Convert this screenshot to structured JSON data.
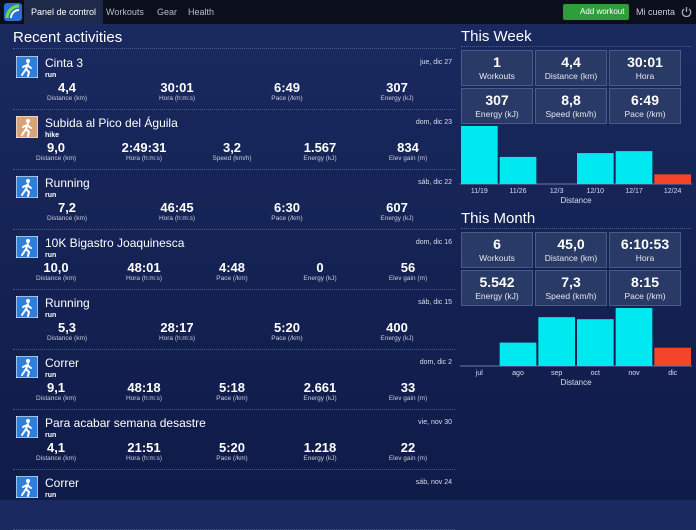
{
  "nav": {
    "tabs": [
      "Panel de control",
      "Workouts",
      "Gear",
      "Health"
    ],
    "add_button": "Add workout",
    "account": "Mi cuenta"
  },
  "recent": {
    "title": "Recent activities",
    "activities": [
      {
        "name": "Cinta 3",
        "type": "run",
        "date": "jue, dic 27",
        "stats": [
          {
            "value": "4,4",
            "label": "Distance (km)"
          },
          {
            "value": "30:01",
            "label": "Hora (h:m:s)"
          },
          {
            "value": "6:49",
            "label": "Pace (/km)"
          },
          {
            "value": "307",
            "label": "Energy (kJ)"
          }
        ]
      },
      {
        "name": "Subida al Pico del Águila",
        "type": "hike",
        "date": "dom, dic 23",
        "stats": [
          {
            "value": "9,0",
            "label": "Distance (km)"
          },
          {
            "value": "2:49:31",
            "label": "Hora (h:m:s)"
          },
          {
            "value": "3,2",
            "label": "Speed (km/h)"
          },
          {
            "value": "1.567",
            "label": "Energy (kJ)"
          },
          {
            "value": "834",
            "label": "Elev gain (m)"
          }
        ]
      },
      {
        "name": "Running",
        "type": "run",
        "date": "sáb, dic 22",
        "stats": [
          {
            "value": "7,2",
            "label": "Distance (km)"
          },
          {
            "value": "46:45",
            "label": "Hora (h:m:s)"
          },
          {
            "value": "6:30",
            "label": "Pace (/km)"
          },
          {
            "value": "607",
            "label": "Energy (kJ)"
          }
        ]
      },
      {
        "name": "10K Bigastro Joaquinesca",
        "type": "run",
        "date": "dom, dic 16",
        "stats": [
          {
            "value": "10,0",
            "label": "Distance (km)"
          },
          {
            "value": "48:01",
            "label": "Hora (h:m:s)"
          },
          {
            "value": "4:48",
            "label": "Pace (/km)"
          },
          {
            "value": "0",
            "label": "Energy (kJ)"
          },
          {
            "value": "56",
            "label": "Elev gain (m)"
          }
        ]
      },
      {
        "name": "Running",
        "type": "run",
        "date": "sáb, dic 15",
        "stats": [
          {
            "value": "5,3",
            "label": "Distance (km)"
          },
          {
            "value": "28:17",
            "label": "Hora (h:m:s)"
          },
          {
            "value": "5:20",
            "label": "Pace (/km)"
          },
          {
            "value": "400",
            "label": "Energy (kJ)"
          }
        ]
      },
      {
        "name": "Correr",
        "type": "run",
        "date": "dom, dic 2",
        "stats": [
          {
            "value": "9,1",
            "label": "Distance (km)"
          },
          {
            "value": "48:18",
            "label": "Hora (h:m:s)"
          },
          {
            "value": "5:18",
            "label": "Pace (/km)"
          },
          {
            "value": "2.661",
            "label": "Energy (kJ)"
          },
          {
            "value": "33",
            "label": "Elev gain (m)"
          }
        ]
      },
      {
        "name": "Para acabar semana desastre",
        "type": "run",
        "date": "vie, nov 30",
        "stats": [
          {
            "value": "4,1",
            "label": "Distance (km)"
          },
          {
            "value": "21:51",
            "label": "Hora (h:m:s)"
          },
          {
            "value": "5:20",
            "label": "Pace (/km)"
          },
          {
            "value": "1.218",
            "label": "Energy (kJ)"
          },
          {
            "value": "22",
            "label": "Elev gain (m)"
          }
        ]
      },
      {
        "name": "Correr",
        "type": "run",
        "date": "sáb, nov 24",
        "stats": []
      }
    ]
  },
  "week": {
    "title": "This Week",
    "tiles": [
      {
        "value": "1",
        "label": "Workouts"
      },
      {
        "value": "4,4",
        "label": "Distance (km)"
      },
      {
        "value": "30:01",
        "label": "Hora"
      },
      {
        "value": "307",
        "label": "Energy (kJ)"
      },
      {
        "value": "8,8",
        "label": "Speed (km/h)"
      },
      {
        "value": "6:49",
        "label": "Pace (/km)"
      }
    ],
    "chart": {
      "type": "bar",
      "categories": [
        "11/19",
        "11/26",
        "12/3",
        "12/10",
        "12/17",
        "12/24"
      ],
      "values": [
        60,
        28,
        0,
        32,
        34,
        10
      ],
      "colors": [
        "#00e8f0",
        "#00e8f0",
        "#00e8f0",
        "#00e8f0",
        "#00e8f0",
        "#f4452a"
      ],
      "xlabel": "Distance"
    }
  },
  "month": {
    "title": "This Month",
    "tiles": [
      {
        "value": "6",
        "label": "Workouts"
      },
      {
        "value": "45,0",
        "label": "Distance (km)"
      },
      {
        "value": "6:10:53",
        "label": "Hora"
      },
      {
        "value": "5.542",
        "label": "Energy (kJ)"
      },
      {
        "value": "7,3",
        "label": "Speed (km/h)"
      },
      {
        "value": "8:15",
        "label": "Pace (/km)"
      }
    ],
    "chart": {
      "type": "bar",
      "categories": [
        "jul",
        "ago",
        "sep",
        "oct",
        "nov",
        "dic"
      ],
      "values": [
        0,
        23,
        48,
        46,
        57,
        18
      ],
      "colors": [
        "#00e8f0",
        "#00e8f0",
        "#00e8f0",
        "#00e8f0",
        "#00e8f0",
        "#f4452a"
      ],
      "xlabel": "Distance"
    }
  }
}
